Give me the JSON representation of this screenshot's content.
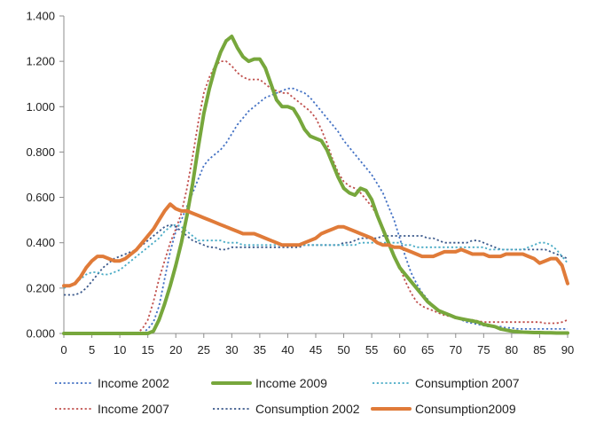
{
  "chart_data": {
    "type": "line",
    "title": "",
    "xlabel": "",
    "ylabel": "",
    "xlim": [
      0,
      90
    ],
    "ylim": [
      0,
      1.4
    ],
    "grid": false,
    "legend_position": "bottom",
    "x_ticks": [
      0,
      5,
      10,
      15,
      20,
      25,
      30,
      35,
      40,
      45,
      50,
      55,
      60,
      65,
      70,
      75,
      80,
      85,
      90
    ],
    "x_tick_labels": [
      "0",
      "5",
      "10",
      "15",
      "20",
      "25",
      "30",
      "35",
      "40",
      "45",
      "50",
      "55",
      "60",
      "65",
      "70",
      "75",
      "80",
      "85",
      "90"
    ],
    "y_ticks": [
      0,
      0.2,
      0.4,
      0.6,
      0.8,
      1.0,
      1.2,
      1.4
    ],
    "y_tick_labels": [
      "0.000",
      "0.200",
      "0.400",
      "0.600",
      "0.800",
      "1.000",
      "1.200",
      "1.400"
    ],
    "legend_order": [
      0,
      2,
      4,
      1,
      3,
      5
    ],
    "series": [
      {
        "name": "Income 2002",
        "color": "#4472c4",
        "style": "dotted",
        "x": [
          14,
          15,
          16,
          17,
          18,
          19,
          20,
          21,
          22,
          23,
          24,
          25,
          26,
          27,
          28,
          29,
          30,
          31,
          32,
          33,
          34,
          35,
          36,
          37,
          38,
          39,
          40,
          41,
          42,
          43,
          44,
          45,
          46,
          47,
          48,
          49,
          50,
          51,
          52,
          53,
          54,
          55,
          56,
          57,
          58,
          59,
          60,
          61,
          62,
          63,
          64,
          65,
          66,
          67,
          68,
          69,
          70,
          71,
          72,
          73,
          74,
          75,
          76,
          77,
          78,
          79,
          80,
          81,
          82,
          83,
          84,
          85,
          86,
          87,
          88,
          89,
          90
        ],
        "values": [
          0,
          0.02,
          0.05,
          0.12,
          0.24,
          0.36,
          0.45,
          0.5,
          0.56,
          0.62,
          0.68,
          0.74,
          0.77,
          0.79,
          0.81,
          0.84,
          0.88,
          0.92,
          0.95,
          0.98,
          1.0,
          1.02,
          1.04,
          1.05,
          1.06,
          1.07,
          1.08,
          1.08,
          1.07,
          1.06,
          1.04,
          1.01,
          0.98,
          0.95,
          0.92,
          0.89,
          0.85,
          0.82,
          0.79,
          0.76,
          0.73,
          0.7,
          0.66,
          0.62,
          0.56,
          0.5,
          0.42,
          0.34,
          0.27,
          0.22,
          0.18,
          0.15,
          0.12,
          0.1,
          0.09,
          0.08,
          0.07,
          0.06,
          0.05,
          0.045,
          0.04,
          0.035,
          0.03,
          0.03,
          0.03,
          0.025,
          0.025,
          0.02,
          0.02,
          0.02,
          0.02,
          0.02,
          0.02,
          0.02,
          0.02,
          0.02,
          0.02
        ]
      },
      {
        "name": "Income 2007",
        "color": "#c0504d",
        "style": "dotted",
        "x": [
          13,
          14,
          15,
          16,
          17,
          18,
          19,
          20,
          21,
          22,
          23,
          24,
          25,
          26,
          27,
          28,
          29,
          30,
          31,
          32,
          33,
          34,
          35,
          36,
          37,
          38,
          39,
          40,
          41,
          42,
          43,
          44,
          45,
          46,
          47,
          48,
          49,
          50,
          51,
          52,
          53,
          54,
          55,
          56,
          57,
          58,
          59,
          60,
          61,
          62,
          63,
          64,
          65,
          66,
          67,
          68,
          69,
          70,
          71,
          72,
          73,
          74,
          75,
          76,
          77,
          78,
          79,
          80,
          81,
          82,
          83,
          84,
          85,
          86,
          87,
          88,
          89,
          90
        ],
        "values": [
          0,
          0.02,
          0.06,
          0.14,
          0.24,
          0.32,
          0.4,
          0.46,
          0.53,
          0.64,
          0.78,
          0.93,
          1.06,
          1.13,
          1.18,
          1.2,
          1.2,
          1.18,
          1.15,
          1.13,
          1.12,
          1.12,
          1.12,
          1.1,
          1.08,
          1.07,
          1.06,
          1.06,
          1.04,
          1.02,
          1.0,
          0.98,
          0.95,
          0.9,
          0.84,
          0.77,
          0.71,
          0.67,
          0.65,
          0.64,
          0.62,
          0.59,
          0.56,
          0.52,
          0.47,
          0.41,
          0.35,
          0.29,
          0.23,
          0.18,
          0.14,
          0.12,
          0.11,
          0.1,
          0.09,
          0.08,
          0.075,
          0.07,
          0.065,
          0.06,
          0.06,
          0.055,
          0.05,
          0.05,
          0.05,
          0.05,
          0.05,
          0.05,
          0.05,
          0.05,
          0.05,
          0.05,
          0.05,
          0.045,
          0.045,
          0.045,
          0.05,
          0.06
        ]
      },
      {
        "name": "Income 2009",
        "color": "#77a73c",
        "style": "solid-thick",
        "x": [
          0,
          5,
          10,
          15,
          16,
          17,
          18,
          19,
          20,
          21,
          22,
          23,
          24,
          25,
          26,
          27,
          28,
          29,
          30,
          31,
          32,
          33,
          34,
          35,
          36,
          37,
          38,
          39,
          40,
          41,
          42,
          43,
          44,
          45,
          46,
          47,
          48,
          49,
          50,
          51,
          52,
          53,
          54,
          55,
          56,
          57,
          58,
          59,
          60,
          61,
          62,
          63,
          64,
          65,
          66,
          67,
          68,
          69,
          70,
          71,
          72,
          73,
          74,
          75,
          76,
          77,
          78,
          79,
          80,
          81,
          82,
          83,
          84,
          85,
          86,
          87,
          88,
          89,
          90
        ],
        "values": [
          0,
          0,
          0,
          0,
          0.01,
          0.06,
          0.13,
          0.21,
          0.3,
          0.4,
          0.52,
          0.66,
          0.82,
          0.97,
          1.08,
          1.17,
          1.24,
          1.29,
          1.31,
          1.26,
          1.22,
          1.2,
          1.21,
          1.21,
          1.17,
          1.1,
          1.03,
          1.0,
          1.0,
          0.99,
          0.95,
          0.9,
          0.87,
          0.86,
          0.85,
          0.81,
          0.75,
          0.69,
          0.64,
          0.62,
          0.61,
          0.64,
          0.63,
          0.59,
          0.52,
          0.46,
          0.4,
          0.34,
          0.29,
          0.26,
          0.23,
          0.2,
          0.17,
          0.14,
          0.12,
          0.1,
          0.09,
          0.08,
          0.07,
          0.065,
          0.06,
          0.055,
          0.05,
          0.04,
          0.035,
          0.03,
          0.02,
          0.015,
          0.01,
          0.008,
          0.006,
          0.005,
          0.004,
          0.004,
          0.003,
          0.003,
          0.002,
          0.002,
          0.002
        ]
      },
      {
        "name": "Consumption 2002",
        "color": "#3c5a8c",
        "style": "dotted",
        "x": [
          0,
          1,
          2,
          3,
          4,
          5,
          6,
          7,
          8,
          9,
          10,
          11,
          12,
          13,
          14,
          15,
          16,
          17,
          18,
          19,
          20,
          21,
          22,
          23,
          24,
          25,
          26,
          27,
          28,
          29,
          30,
          31,
          32,
          33,
          34,
          35,
          36,
          37,
          38,
          39,
          40,
          41,
          42,
          43,
          44,
          45,
          46,
          47,
          48,
          49,
          50,
          51,
          52,
          53,
          54,
          55,
          56,
          57,
          58,
          59,
          60,
          61,
          62,
          63,
          64,
          65,
          66,
          67,
          68,
          69,
          70,
          71,
          72,
          73,
          74,
          75,
          76,
          77,
          78,
          79,
          80,
          81,
          82,
          83,
          84,
          85,
          86,
          87,
          88,
          89,
          90
        ],
        "values": [
          0.17,
          0.17,
          0.17,
          0.18,
          0.2,
          0.23,
          0.26,
          0.29,
          0.31,
          0.33,
          0.34,
          0.35,
          0.36,
          0.37,
          0.39,
          0.41,
          0.43,
          0.45,
          0.47,
          0.48,
          0.47,
          0.45,
          0.43,
          0.41,
          0.4,
          0.39,
          0.38,
          0.38,
          0.37,
          0.37,
          0.38,
          0.38,
          0.38,
          0.38,
          0.38,
          0.38,
          0.38,
          0.38,
          0.38,
          0.38,
          0.38,
          0.38,
          0.38,
          0.39,
          0.39,
          0.39,
          0.39,
          0.39,
          0.39,
          0.39,
          0.4,
          0.4,
          0.41,
          0.42,
          0.42,
          0.42,
          0.42,
          0.43,
          0.43,
          0.43,
          0.43,
          0.43,
          0.43,
          0.43,
          0.43,
          0.42,
          0.42,
          0.41,
          0.4,
          0.4,
          0.4,
          0.4,
          0.4,
          0.41,
          0.41,
          0.4,
          0.39,
          0.38,
          0.37,
          0.37,
          0.37,
          0.37,
          0.37,
          0.37,
          0.37,
          0.37,
          0.37,
          0.36,
          0.35,
          0.34,
          0.33
        ]
      },
      {
        "name": "Consumption 2007",
        "color": "#4bacc6",
        "style": "dotted",
        "x": [
          0,
          1,
          2,
          3,
          4,
          5,
          6,
          7,
          8,
          9,
          10,
          11,
          12,
          13,
          14,
          15,
          16,
          17,
          18,
          19,
          20,
          21,
          22,
          23,
          24,
          25,
          26,
          27,
          28,
          29,
          30,
          31,
          32,
          33,
          34,
          35,
          36,
          37,
          38,
          39,
          40,
          41,
          42,
          43,
          44,
          45,
          46,
          47,
          48,
          49,
          50,
          51,
          52,
          53,
          54,
          55,
          56,
          57,
          58,
          59,
          60,
          61,
          62,
          63,
          64,
          65,
          66,
          67,
          68,
          69,
          70,
          71,
          72,
          73,
          74,
          75,
          76,
          77,
          78,
          79,
          80,
          81,
          82,
          83,
          84,
          85,
          86,
          87,
          88,
          89,
          90
        ],
        "values": [
          0.2,
          0.21,
          0.22,
          0.24,
          0.26,
          0.27,
          0.27,
          0.26,
          0.26,
          0.27,
          0.28,
          0.3,
          0.32,
          0.34,
          0.36,
          0.38,
          0.4,
          0.42,
          0.45,
          0.47,
          0.48,
          0.47,
          0.45,
          0.43,
          0.41,
          0.41,
          0.41,
          0.41,
          0.41,
          0.4,
          0.4,
          0.4,
          0.39,
          0.39,
          0.39,
          0.39,
          0.39,
          0.39,
          0.39,
          0.39,
          0.39,
          0.39,
          0.39,
          0.39,
          0.39,
          0.39,
          0.39,
          0.39,
          0.39,
          0.39,
          0.39,
          0.39,
          0.39,
          0.4,
          0.4,
          0.4,
          0.4,
          0.4,
          0.4,
          0.4,
          0.4,
          0.39,
          0.39,
          0.38,
          0.38,
          0.38,
          0.38,
          0.38,
          0.38,
          0.38,
          0.38,
          0.38,
          0.38,
          0.38,
          0.38,
          0.38,
          0.37,
          0.37,
          0.37,
          0.37,
          0.37,
          0.37,
          0.37,
          0.38,
          0.39,
          0.4,
          0.4,
          0.39,
          0.37,
          0.34,
          0.31
        ]
      },
      {
        "name": "Consumption2009",
        "color": "#e07b39",
        "style": "solid-thick",
        "x": [
          0,
          1,
          2,
          3,
          4,
          5,
          6,
          7,
          8,
          9,
          10,
          11,
          12,
          13,
          14,
          15,
          16,
          17,
          18,
          19,
          20,
          21,
          22,
          23,
          24,
          25,
          26,
          27,
          28,
          29,
          30,
          31,
          32,
          33,
          34,
          35,
          36,
          37,
          38,
          39,
          40,
          41,
          42,
          43,
          44,
          45,
          46,
          47,
          48,
          49,
          50,
          51,
          52,
          53,
          54,
          55,
          56,
          57,
          58,
          59,
          60,
          61,
          62,
          63,
          64,
          65,
          66,
          67,
          68,
          69,
          70,
          71,
          72,
          73,
          74,
          75,
          76,
          77,
          78,
          79,
          80,
          81,
          82,
          83,
          84,
          85,
          86,
          87,
          88,
          89,
          90
        ],
        "values": [
          0.21,
          0.21,
          0.22,
          0.25,
          0.29,
          0.32,
          0.34,
          0.34,
          0.33,
          0.32,
          0.32,
          0.33,
          0.35,
          0.37,
          0.4,
          0.43,
          0.46,
          0.5,
          0.54,
          0.57,
          0.55,
          0.54,
          0.54,
          0.53,
          0.52,
          0.51,
          0.5,
          0.49,
          0.48,
          0.47,
          0.46,
          0.45,
          0.44,
          0.44,
          0.44,
          0.43,
          0.42,
          0.41,
          0.4,
          0.39,
          0.39,
          0.39,
          0.39,
          0.4,
          0.41,
          0.42,
          0.44,
          0.45,
          0.46,
          0.47,
          0.47,
          0.46,
          0.45,
          0.44,
          0.43,
          0.42,
          0.4,
          0.39,
          0.39,
          0.38,
          0.38,
          0.37,
          0.36,
          0.35,
          0.34,
          0.34,
          0.34,
          0.35,
          0.36,
          0.36,
          0.36,
          0.37,
          0.36,
          0.35,
          0.35,
          0.35,
          0.34,
          0.34,
          0.34,
          0.35,
          0.35,
          0.35,
          0.35,
          0.34,
          0.33,
          0.31,
          0.32,
          0.33,
          0.33,
          0.3,
          0.22
        ]
      }
    ]
  }
}
